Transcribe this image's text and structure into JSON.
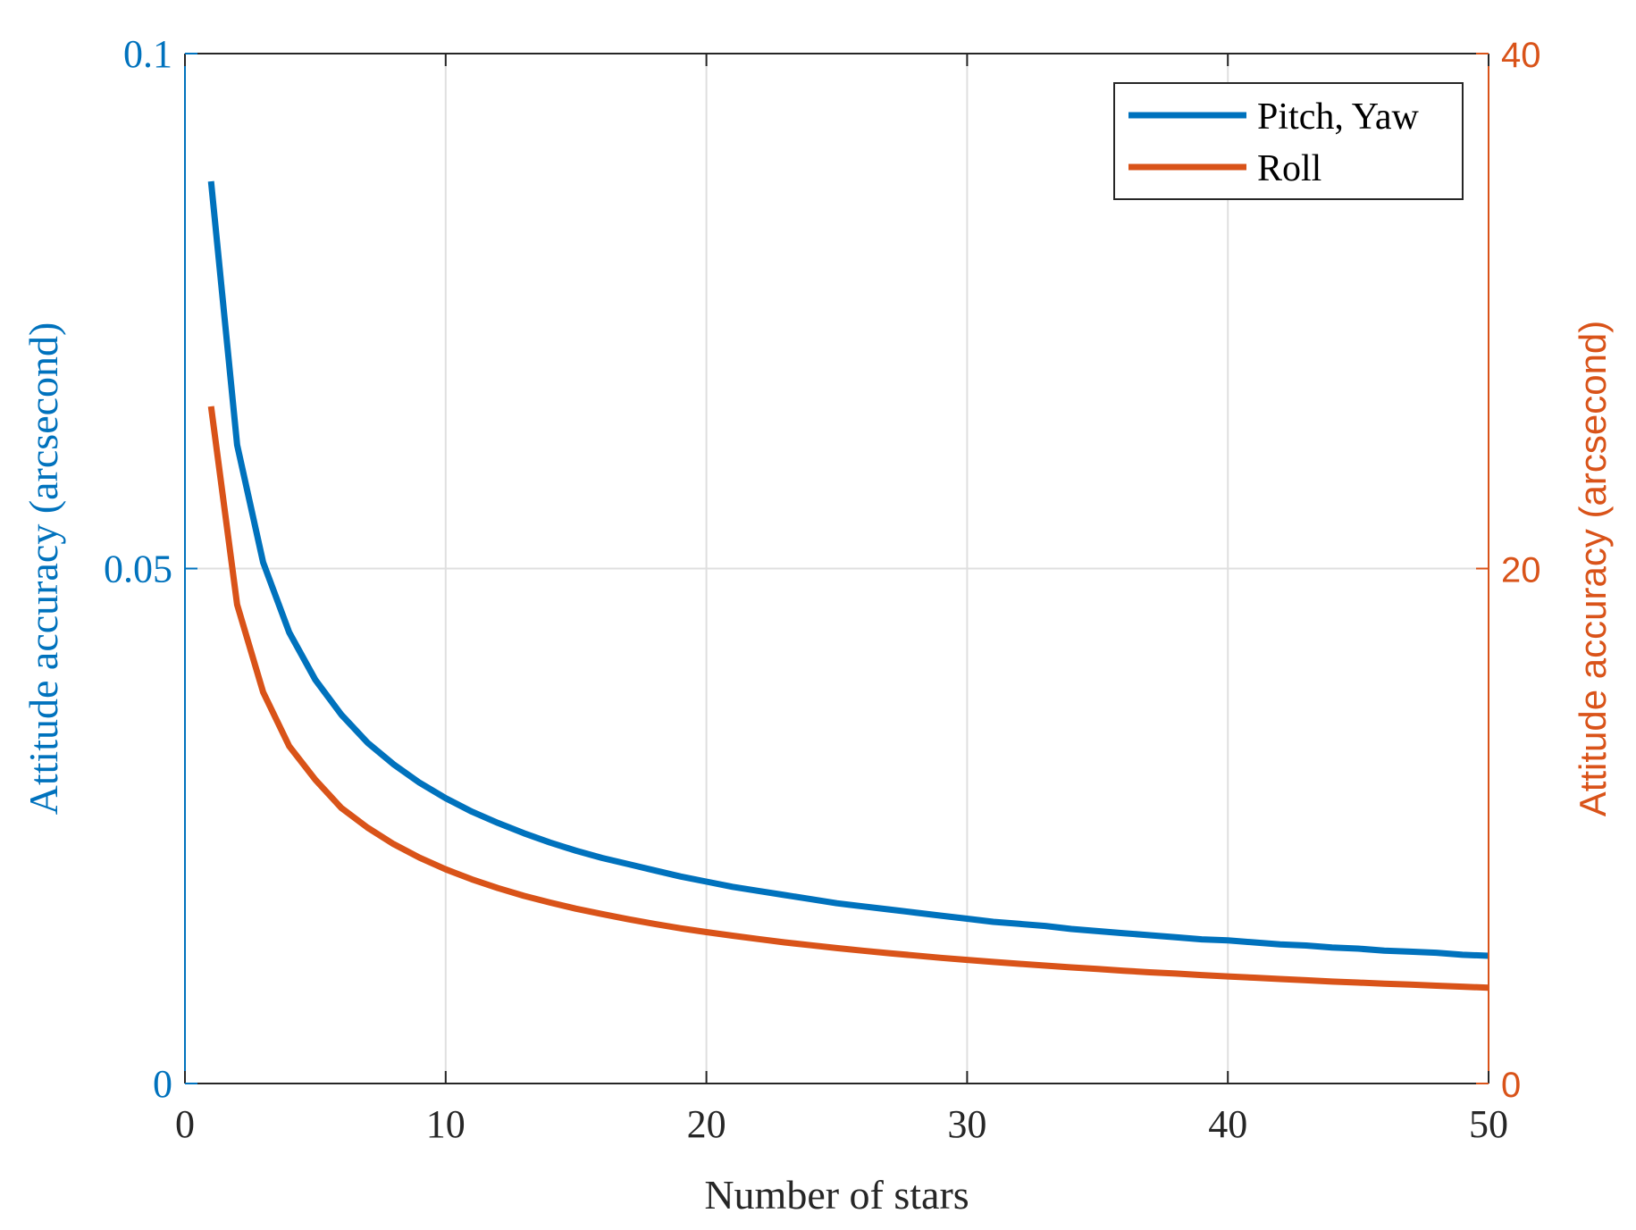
{
  "chart_data": {
    "type": "line",
    "title": "",
    "xlabel": "Number of stars",
    "ylabel_left": "Attitude accuracy (arcsecond)",
    "ylabel_right": "Attitude accuracy (arcsecond)",
    "xlim": [
      0,
      50
    ],
    "ylim_left": [
      0,
      0.1
    ],
    "ylim_right": [
      0,
      40
    ],
    "xticks": [
      0,
      10,
      20,
      30,
      40,
      50
    ],
    "xtick_labels": [
      "0",
      "10",
      "20",
      "30",
      "40",
      "50"
    ],
    "yticks_left": [
      0,
      0.05,
      0.1
    ],
    "ytick_labels_left": [
      "0",
      "0.05",
      "0.1"
    ],
    "yticks_right": [
      0,
      20,
      40
    ],
    "ytick_labels_right": [
      "0",
      "20",
      "40"
    ],
    "grid": true,
    "legend_position": "top-right",
    "x": [
      1,
      2,
      3,
      4,
      5,
      6,
      7,
      8,
      9,
      10,
      11,
      12,
      13,
      14,
      15,
      16,
      17,
      18,
      19,
      20,
      21,
      22,
      23,
      24,
      25,
      26,
      27,
      28,
      29,
      30,
      31,
      32,
      33,
      34,
      35,
      36,
      37,
      38,
      39,
      40,
      41,
      42,
      43,
      44,
      45,
      46,
      47,
      48,
      49,
      50
    ],
    "series": [
      {
        "name": "Pitch, Yaw",
        "axis": "left",
        "color": "#0072BD",
        "values": [
          0.0876,
          0.062,
          0.0506,
          0.0438,
          0.0392,
          0.0358,
          0.0331,
          0.031,
          0.0292,
          0.0277,
          0.0264,
          0.0253,
          0.0243,
          0.0234,
          0.0226,
          0.0219,
          0.0213,
          0.0207,
          0.0201,
          0.0196,
          0.0191,
          0.0187,
          0.0183,
          0.0179,
          0.0175,
          0.0172,
          0.0169,
          0.0166,
          0.0163,
          0.016,
          0.0157,
          0.0155,
          0.0153,
          0.015,
          0.0148,
          0.0146,
          0.0144,
          0.0142,
          0.014,
          0.0139,
          0.0137,
          0.0135,
          0.0134,
          0.0132,
          0.0131,
          0.0129,
          0.0128,
          0.0127,
          0.0125,
          0.0124
        ]
      },
      {
        "name": "Roll",
        "axis": "right",
        "color": "#D95319",
        "values": [
          26.3,
          18.6,
          15.2,
          13.1,
          11.8,
          10.7,
          9.94,
          9.3,
          8.77,
          8.32,
          7.93,
          7.59,
          7.29,
          7.03,
          6.79,
          6.58,
          6.38,
          6.2,
          6.03,
          5.88,
          5.74,
          5.61,
          5.48,
          5.37,
          5.26,
          5.16,
          5.06,
          4.97,
          4.88,
          4.8,
          4.72,
          4.65,
          4.58,
          4.51,
          4.45,
          4.38,
          4.32,
          4.27,
          4.21,
          4.16,
          4.11,
          4.06,
          4.01,
          3.96,
          3.92,
          3.88,
          3.84,
          3.8,
          3.76,
          3.72
        ]
      }
    ]
  }
}
